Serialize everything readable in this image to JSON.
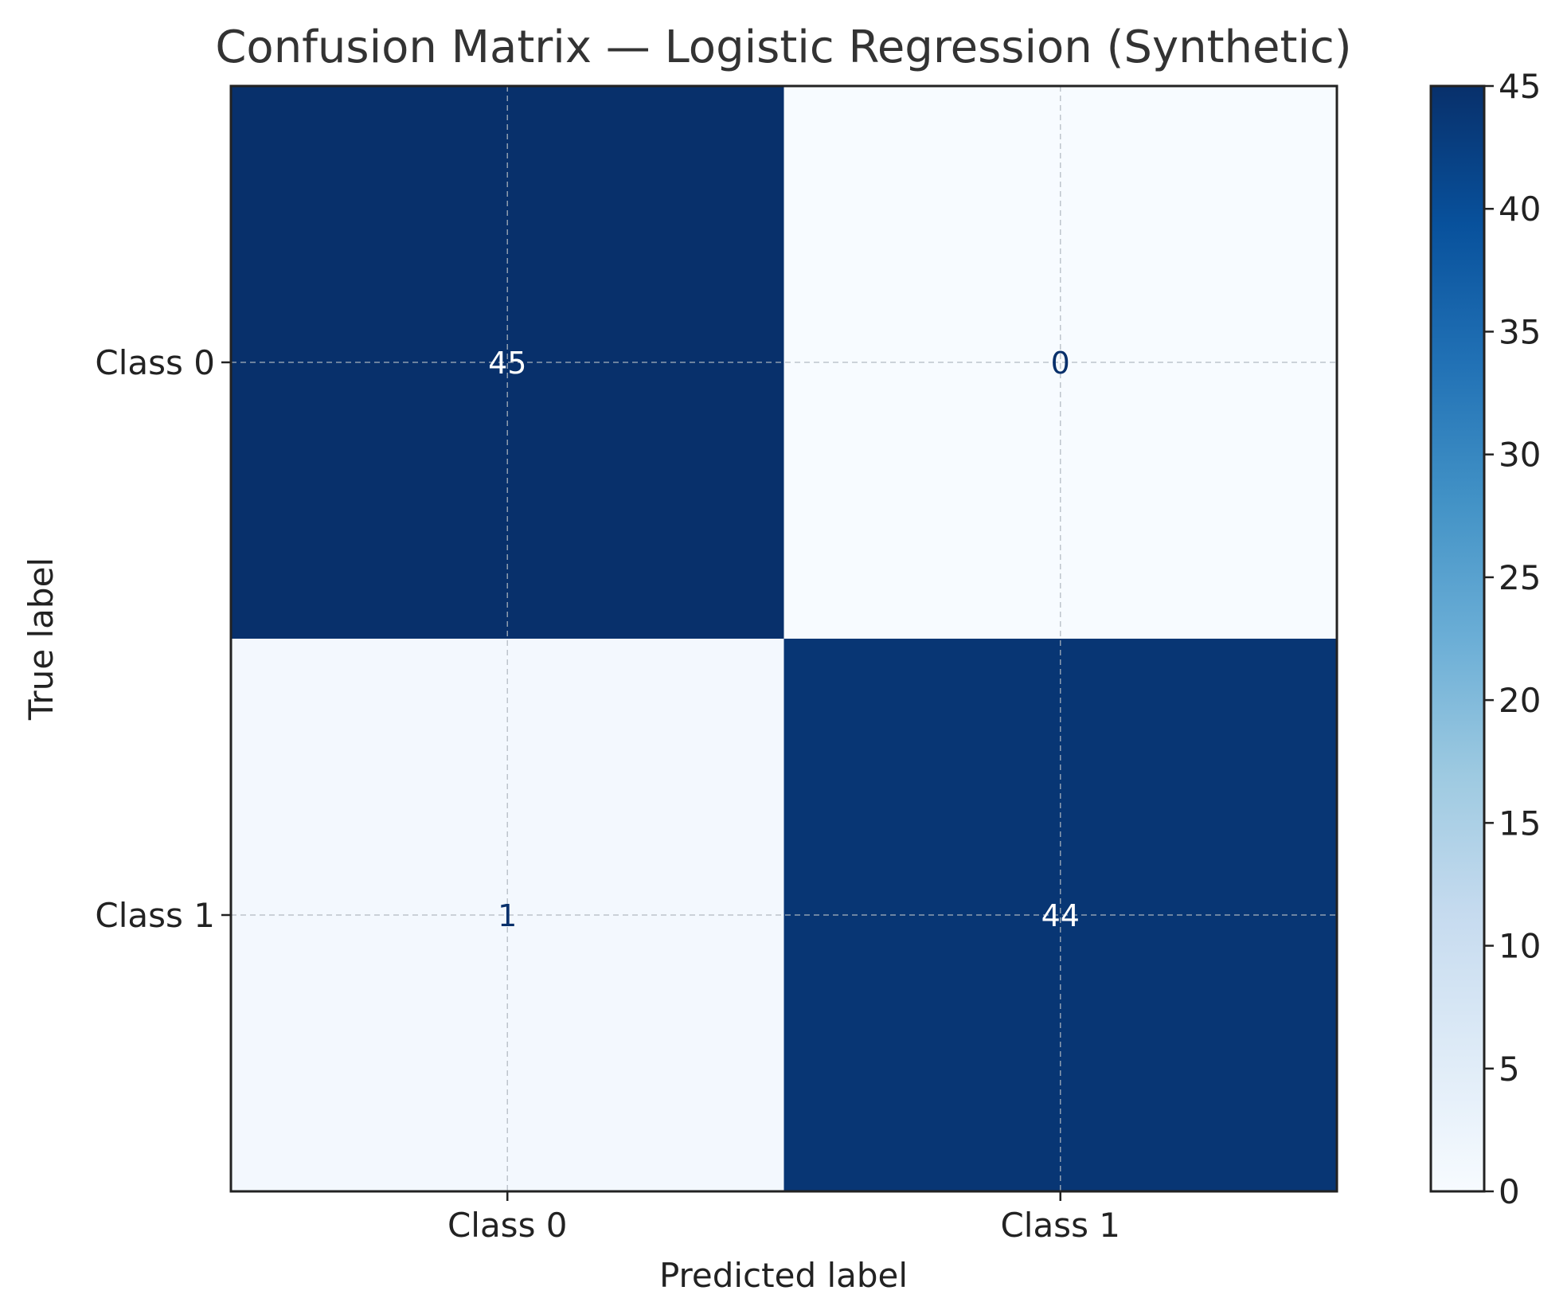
{
  "chart_data": {
    "type": "heatmap",
    "title": "Confusion Matrix — Logistic Regression (Synthetic)",
    "xlabel": "Predicted label",
    "ylabel": "True label",
    "x_categories": [
      "Class 0",
      "Class 1"
    ],
    "y_categories": [
      "Class 0",
      "Class 1"
    ],
    "values": [
      [
        45,
        0
      ],
      [
        1,
        44
      ]
    ],
    "colormap": "Blues",
    "colorbar": {
      "min": 0,
      "max": 45,
      "ticks": [
        0,
        5,
        10,
        15,
        20,
        25,
        30,
        35,
        40,
        45
      ]
    },
    "grid": true,
    "colors": {
      "high": "#08306b",
      "low": "#f7fbff",
      "text_on_dark": "#ffffff",
      "text_on_light": "#08306b",
      "title": "#333333",
      "axis": "#222222"
    }
  }
}
